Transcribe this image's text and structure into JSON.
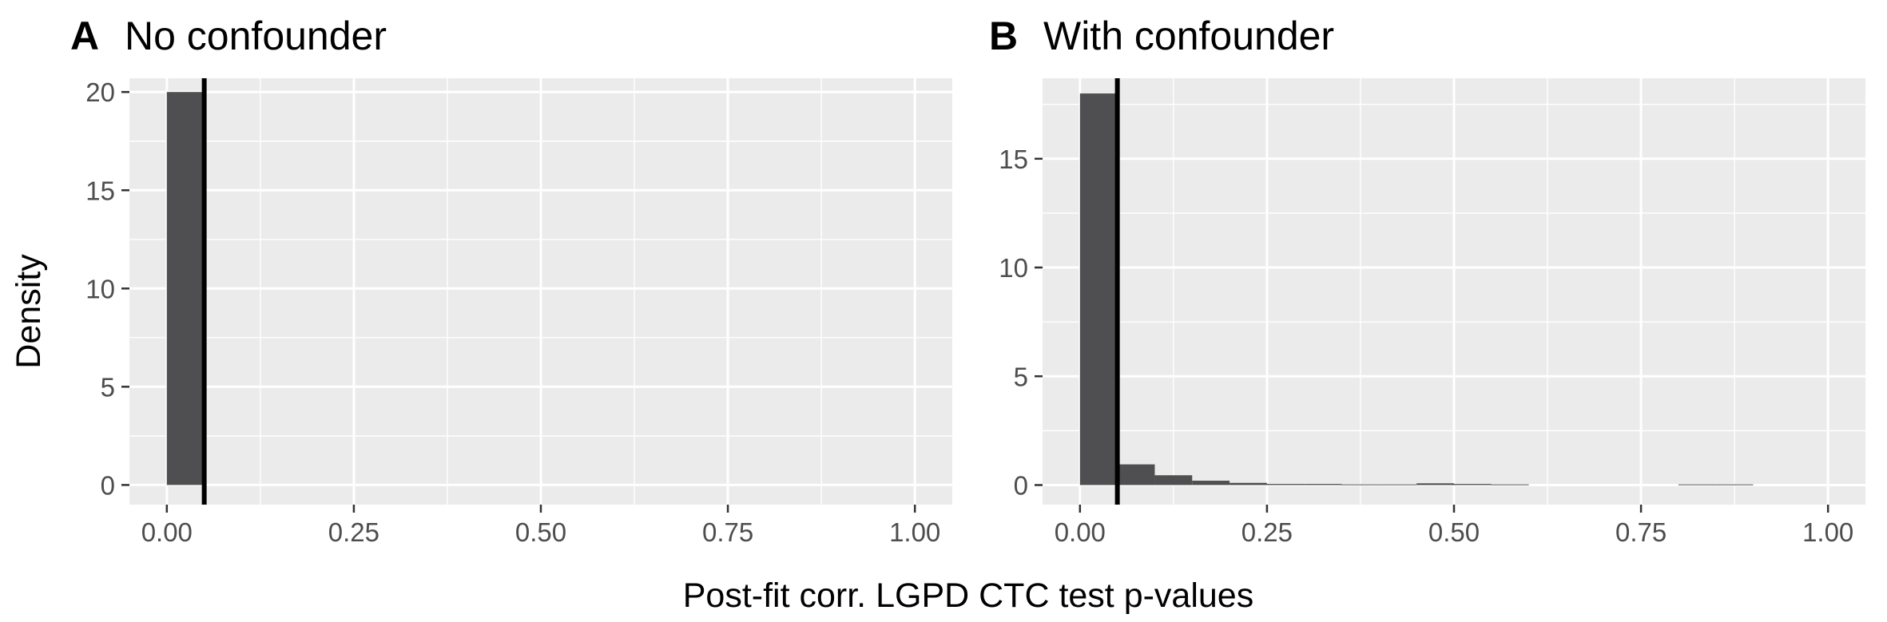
{
  "chart_data": {
    "type": "histogram",
    "xlabel": "Post-fit corr. LGPD CTC test p-values",
    "ylabel": "Density",
    "bin_width": 0.05,
    "reference_line_x": 0.05,
    "grid": true,
    "panels": [
      {
        "letter": "A",
        "title": "No confounder",
        "xlim": [
          -0.05,
          1.05
        ],
        "ylim": [
          -1,
          20.7
        ],
        "x_ticks": [
          0,
          0.25,
          0.5,
          0.75,
          1
        ],
        "x_tick_labels": [
          "0.00",
          "0.25",
          "0.50",
          "0.75",
          "1.00"
        ],
        "y_ticks": [
          0,
          5,
          10,
          15,
          20
        ],
        "y_tick_labels": [
          "0",
          "5",
          "10",
          "15",
          "20"
        ],
        "bins": [
          {
            "x0": 0.0,
            "x1": 0.05,
            "density": 20
          }
        ]
      },
      {
        "letter": "B",
        "title": "With confounder",
        "xlim": [
          -0.05,
          1.05
        ],
        "ylim": [
          -0.9,
          18.7
        ],
        "x_ticks": [
          0,
          0.25,
          0.5,
          0.75,
          1
        ],
        "x_tick_labels": [
          "0.00",
          "0.25",
          "0.50",
          "0.75",
          "1.00"
        ],
        "y_ticks": [
          0,
          5,
          10,
          15
        ],
        "y_tick_labels": [
          "0",
          "5",
          "10",
          "15"
        ],
        "bins": [
          {
            "x0": 0.0,
            "x1": 0.05,
            "density": 18.0
          },
          {
            "x0": 0.05,
            "x1": 0.1,
            "density": 0.95
          },
          {
            "x0": 0.1,
            "x1": 0.15,
            "density": 0.45
          },
          {
            "x0": 0.15,
            "x1": 0.2,
            "density": 0.2
          },
          {
            "x0": 0.2,
            "x1": 0.25,
            "density": 0.1
          },
          {
            "x0": 0.25,
            "x1": 0.3,
            "density": 0.05
          },
          {
            "x0": 0.3,
            "x1": 0.35,
            "density": 0.05
          },
          {
            "x0": 0.35,
            "x1": 0.4,
            "density": 0.03
          },
          {
            "x0": 0.4,
            "x1": 0.45,
            "density": 0.03
          },
          {
            "x0": 0.45,
            "x1": 0.5,
            "density": 0.08
          },
          {
            "x0": 0.5,
            "x1": 0.55,
            "density": 0.05
          },
          {
            "x0": 0.55,
            "x1": 0.6,
            "density": 0.03
          },
          {
            "x0": 0.8,
            "x1": 0.85,
            "density": 0.03
          },
          {
            "x0": 0.85,
            "x1": 0.9,
            "density": 0.03
          }
        ]
      }
    ],
    "colors": {
      "panel_background": "#ebebeb",
      "grid_line": "#ffffff",
      "bar_fill": "#4f4e50",
      "reference_line": "#000000",
      "tick_label": "#4d4d4d",
      "tick_mark": "#333333"
    }
  }
}
